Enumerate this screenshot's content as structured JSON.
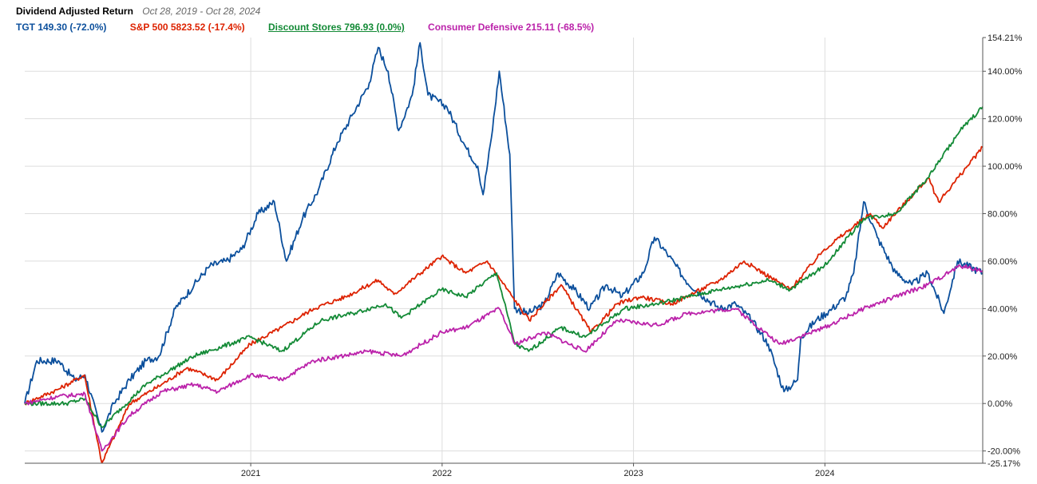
{
  "header": {
    "title": "Dividend Adjusted Return",
    "date_range": "Oct 28, 2019 - Oct 28, 2024"
  },
  "legend": [
    {
      "label": "TGT 149.30 (-72.0%)",
      "color": "#0b4f9c",
      "underline": false
    },
    {
      "label": "S&P 500 5823.52 (-17.4%)",
      "color": "#dd2200",
      "underline": false
    },
    {
      "label": "Discount Stores 796.93 (0.0%)",
      "color": "#138a36",
      "underline": true
    },
    {
      "label": "Consumer Defensive 215.11 (-68.5%)",
      "color": "#bb22aa",
      "underline": false
    }
  ],
  "chart_data": {
    "type": "line",
    "title": "Dividend Adjusted Return",
    "x_range": [
      "2019-10-28",
      "2024-10-28"
    ],
    "ylim": [
      -25.17,
      154.21
    ],
    "y_ticks": [
      {
        "value": 154.21,
        "label": "154.21%"
      },
      {
        "value": 140,
        "label": "140.00%"
      },
      {
        "value": 120,
        "label": "120.00%"
      },
      {
        "value": 100,
        "label": "100.00%"
      },
      {
        "value": 80,
        "label": "80.00%"
      },
      {
        "value": 60,
        "label": "60.00%"
      },
      {
        "value": 40,
        "label": "40.00%"
      },
      {
        "value": 20,
        "label": "20.00%"
      },
      {
        "value": 0,
        "label": "0.00%"
      },
      {
        "value": -20,
        "label": "-20.00%"
      },
      {
        "value": -25.17,
        "label": "-25.17%"
      }
    ],
    "x_ticks": [
      {
        "date": "2021-01-01",
        "label": "2021"
      },
      {
        "date": "2022-01-01",
        "label": "2022"
      },
      {
        "date": "2023-01-01",
        "label": "2023"
      },
      {
        "date": "2024-01-01",
        "label": "2024"
      }
    ],
    "grid": true,
    "legend_position": "top-left",
    "series": [
      {
        "name": "TGT",
        "color": "#0b4f9c",
        "points": [
          [
            "2019-10-28",
            0
          ],
          [
            "2019-11-20",
            18
          ],
          [
            "2019-12-31",
            18
          ],
          [
            "2020-01-31",
            10
          ],
          [
            "2020-02-20",
            12
          ],
          [
            "2020-03-23",
            -12
          ],
          [
            "2020-04-15",
            0
          ],
          [
            "2020-05-15",
            10
          ],
          [
            "2020-06-15",
            18
          ],
          [
            "2020-07-10",
            20
          ],
          [
            "2020-08-10",
            40
          ],
          [
            "2020-09-15",
            50
          ],
          [
            "2020-10-15",
            58
          ],
          [
            "2020-11-15",
            60
          ],
          [
            "2020-12-15",
            65
          ],
          [
            "2021-01-15",
            80
          ],
          [
            "2021-02-15",
            85
          ],
          [
            "2021-03-10",
            60
          ],
          [
            "2021-04-10",
            78
          ],
          [
            "2021-05-10",
            90
          ],
          [
            "2021-06-15",
            110
          ],
          [
            "2021-07-15",
            122
          ],
          [
            "2021-08-15",
            135
          ],
          [
            "2021-09-01",
            150
          ],
          [
            "2021-09-20",
            140
          ],
          [
            "2021-10-10",
            115
          ],
          [
            "2021-11-05",
            130
          ],
          [
            "2021-11-20",
            152
          ],
          [
            "2021-12-05",
            130
          ],
          [
            "2022-01-10",
            125
          ],
          [
            "2022-02-15",
            108
          ],
          [
            "2022-03-10",
            100
          ],
          [
            "2022-03-20",
            88
          ],
          [
            "2022-04-05",
            112
          ],
          [
            "2022-04-20",
            140
          ],
          [
            "2022-05-10",
            105
          ],
          [
            "2022-05-19",
            40
          ],
          [
            "2022-06-15",
            38
          ],
          [
            "2022-07-15",
            42
          ],
          [
            "2022-08-10",
            55
          ],
          [
            "2022-09-10",
            48
          ],
          [
            "2022-10-10",
            40
          ],
          [
            "2022-11-10",
            50
          ],
          [
            "2022-12-10",
            45
          ],
          [
            "2023-01-20",
            55
          ],
          [
            "2023-02-10",
            70
          ],
          [
            "2023-03-10",
            62
          ],
          [
            "2023-04-10",
            52
          ],
          [
            "2023-05-15",
            45
          ],
          [
            "2023-06-15",
            40
          ],
          [
            "2023-07-15",
            42
          ],
          [
            "2023-08-15",
            35
          ],
          [
            "2023-09-15",
            25
          ],
          [
            "2023-10-15",
            5
          ],
          [
            "2023-11-10",
            10
          ],
          [
            "2023-11-16",
            28
          ],
          [
            "2023-12-15",
            35
          ],
          [
            "2024-01-15",
            40
          ],
          [
            "2024-02-10",
            45
          ],
          [
            "2024-02-25",
            55
          ],
          [
            "2024-03-15",
            85
          ],
          [
            "2024-04-10",
            70
          ],
          [
            "2024-05-15",
            55
          ],
          [
            "2024-06-15",
            50
          ],
          [
            "2024-07-15",
            55
          ],
          [
            "2024-08-15",
            38
          ],
          [
            "2024-09-10",
            60
          ],
          [
            "2024-10-28",
            55
          ]
        ]
      },
      {
        "name": "S&P 500",
        "color": "#dd2200",
        "points": [
          [
            "2019-10-28",
            0
          ],
          [
            "2019-12-31",
            6
          ],
          [
            "2020-02-19",
            12
          ],
          [
            "2020-03-23",
            -25
          ],
          [
            "2020-05-15",
            0
          ],
          [
            "2020-07-15",
            8
          ],
          [
            "2020-09-01",
            15
          ],
          [
            "2020-10-30",
            10
          ],
          [
            "2020-12-31",
            25
          ],
          [
            "2021-03-01",
            32
          ],
          [
            "2021-05-01",
            40
          ],
          [
            "2021-07-01",
            45
          ],
          [
            "2021-09-01",
            52
          ],
          [
            "2021-10-01",
            46
          ],
          [
            "2021-12-31",
            62
          ],
          [
            "2022-02-15",
            55
          ],
          [
            "2022-03-28",
            60
          ],
          [
            "2022-05-15",
            45
          ],
          [
            "2022-06-16",
            35
          ],
          [
            "2022-08-16",
            50
          ],
          [
            "2022-10-12",
            30
          ],
          [
            "2022-12-01",
            42
          ],
          [
            "2023-01-15",
            45
          ],
          [
            "2023-03-15",
            42
          ],
          [
            "2023-06-15",
            52
          ],
          [
            "2023-07-31",
            60
          ],
          [
            "2023-10-27",
            48
          ],
          [
            "2023-12-31",
            65
          ],
          [
            "2024-03-28",
            80
          ],
          [
            "2024-04-19",
            74
          ],
          [
            "2024-07-16",
            95
          ],
          [
            "2024-08-05",
            85
          ],
          [
            "2024-10-28",
            108
          ]
        ]
      },
      {
        "name": "Discount Stores",
        "color": "#138a36",
        "points": [
          [
            "2019-10-28",
            0
          ],
          [
            "2020-01-15",
            0
          ],
          [
            "2020-02-20",
            2
          ],
          [
            "2020-03-23",
            -10
          ],
          [
            "2020-06-15",
            8
          ],
          [
            "2020-09-15",
            20
          ],
          [
            "2020-12-31",
            28
          ],
          [
            "2021-03-01",
            22
          ],
          [
            "2021-05-15",
            35
          ],
          [
            "2021-07-15",
            38
          ],
          [
            "2021-09-15",
            42
          ],
          [
            "2021-10-15",
            36
          ],
          [
            "2021-12-31",
            48
          ],
          [
            "2022-02-15",
            45
          ],
          [
            "2022-04-15",
            55
          ],
          [
            "2022-05-20",
            25
          ],
          [
            "2022-06-15",
            22
          ],
          [
            "2022-08-15",
            32
          ],
          [
            "2022-10-01",
            28
          ],
          [
            "2022-12-15",
            40
          ],
          [
            "2023-02-15",
            42
          ],
          [
            "2023-04-15",
            45
          ],
          [
            "2023-06-15",
            48
          ],
          [
            "2023-09-15",
            52
          ],
          [
            "2023-10-27",
            48
          ],
          [
            "2023-12-31",
            58
          ],
          [
            "2024-03-15",
            78
          ],
          [
            "2024-05-15",
            80
          ],
          [
            "2024-07-15",
            95
          ],
          [
            "2024-09-15",
            115
          ],
          [
            "2024-10-28",
            125
          ]
        ]
      },
      {
        "name": "Consumer Defensive",
        "color": "#bb22aa",
        "points": [
          [
            "2019-10-28",
            0
          ],
          [
            "2019-12-31",
            3
          ],
          [
            "2020-02-20",
            4
          ],
          [
            "2020-03-23",
            -20
          ],
          [
            "2020-05-15",
            -5
          ],
          [
            "2020-07-15",
            5
          ],
          [
            "2020-09-15",
            8
          ],
          [
            "2020-10-30",
            5
          ],
          [
            "2020-12-31",
            12
          ],
          [
            "2021-03-01",
            10
          ],
          [
            "2021-05-01",
            18
          ],
          [
            "2021-08-15",
            22
          ],
          [
            "2021-10-15",
            20
          ],
          [
            "2021-12-31",
            30
          ],
          [
            "2022-02-15",
            32
          ],
          [
            "2022-04-20",
            40
          ],
          [
            "2022-05-20",
            25
          ],
          [
            "2022-07-15",
            30
          ],
          [
            "2022-09-30",
            22
          ],
          [
            "2022-12-01",
            35
          ],
          [
            "2023-02-15",
            33
          ],
          [
            "2023-04-15",
            38
          ],
          [
            "2023-07-15",
            40
          ],
          [
            "2023-10-06",
            25
          ],
          [
            "2023-12-31",
            32
          ],
          [
            "2024-03-15",
            40
          ],
          [
            "2024-05-15",
            45
          ],
          [
            "2024-07-15",
            50
          ],
          [
            "2024-09-15",
            58
          ],
          [
            "2024-10-28",
            56
          ]
        ]
      }
    ]
  }
}
